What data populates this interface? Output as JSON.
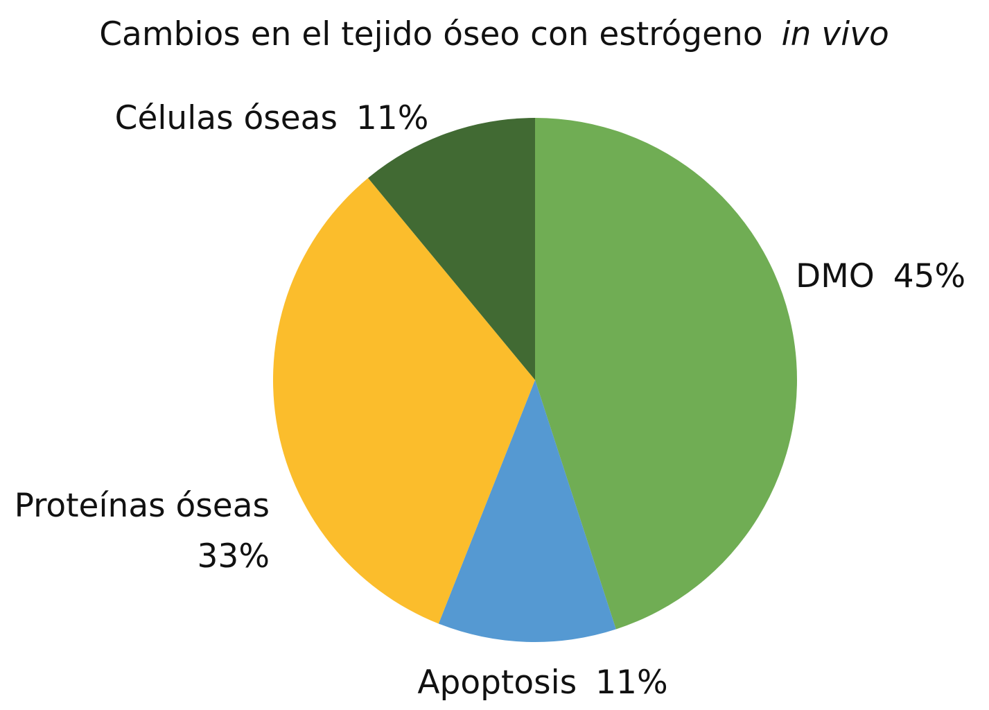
{
  "chart_data": {
    "type": "pie",
    "title": "Cambios en el tejido óseo con estrógeno",
    "title_italic": "in vivo",
    "slices": [
      {
        "label": "DMO",
        "value": 45,
        "value_label": "45%",
        "color": "#70AD54"
      },
      {
        "label": "Apoptosis",
        "value": 11,
        "value_label": "11%",
        "color": "#5599D2"
      },
      {
        "label": "Proteínas óseas",
        "value": 33,
        "value_label": "33%",
        "color": "#FBBD2C"
      },
      {
        "label": "Células óseas",
        "value": 11,
        "value_label": "11%",
        "color": "#416A33"
      }
    ],
    "start_angle": "12 o'clock",
    "direction": "clockwise",
    "legend": "none"
  }
}
